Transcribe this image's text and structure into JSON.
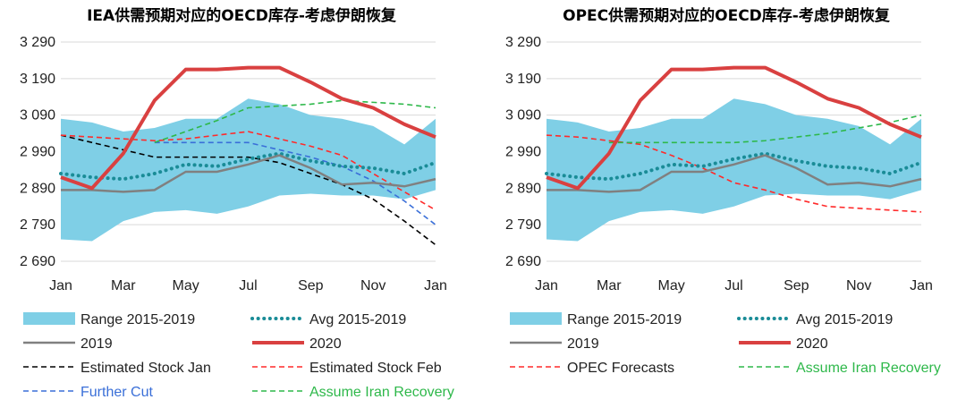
{
  "chart_data": [
    {
      "type": "line",
      "title": "IEA供需预期对应的OECD库存-考虑伊朗恢复",
      "x_ticks": [
        "Jan",
        "Mar",
        "May",
        "Jul",
        "Sep",
        "Nov",
        "Jan"
      ],
      "ylim": [
        2690,
        3290
      ],
      "y_ticks": [
        2690,
        2790,
        2890,
        2990,
        3090,
        3190,
        3290
      ],
      "y_tick_labels": [
        "2 690",
        "2 790",
        "2 890",
        "2 990",
        "3 090",
        "3 190",
        "3 290"
      ],
      "grid": true,
      "legend_placement": "bottom",
      "series": [
        {
          "name": "Range 2015-2019",
          "kind": "band",
          "color": "#7fcfe6",
          "x": [
            0,
            1,
            2,
            3,
            4,
            5,
            6,
            7,
            8,
            9,
            10,
            11,
            12
          ],
          "low": [
            2750,
            2745,
            2800,
            2825,
            2830,
            2820,
            2840,
            2870,
            2875,
            2870,
            2870,
            2860,
            2885
          ],
          "high": [
            3080,
            3070,
            3045,
            3055,
            3080,
            3080,
            3135,
            3120,
            3090,
            3080,
            3060,
            3010,
            3080
          ]
        },
        {
          "name": "Avg 2015-2019",
          "kind": "dotted",
          "color": "#1a8c97",
          "x": [
            0,
            1,
            2,
            3,
            4,
            5,
            6,
            7,
            8,
            9,
            10,
            11,
            12
          ],
          "y": [
            2930,
            2920,
            2915,
            2930,
            2955,
            2950,
            2970,
            2985,
            2965,
            2950,
            2945,
            2930,
            2960
          ]
        },
        {
          "name": "2019",
          "kind": "solid",
          "color": "#808080",
          "x": [
            0,
            1,
            2,
            3,
            4,
            5,
            6,
            7,
            8,
            9,
            10,
            11,
            12
          ],
          "y": [
            2885,
            2885,
            2880,
            2885,
            2935,
            2935,
            2955,
            2980,
            2945,
            2900,
            2905,
            2895,
            2915
          ]
        },
        {
          "name": "2020",
          "kind": "thick",
          "color": "#d94040",
          "x": [
            0,
            1,
            2,
            3,
            4,
            5,
            6,
            7,
            8,
            9,
            10,
            11,
            12
          ],
          "y": [
            2920,
            2890,
            2985,
            3130,
            3215,
            3215,
            3220,
            3220,
            3180,
            3135,
            3110,
            3065,
            3030
          ]
        },
        {
          "name": "Estimated Stock Jan",
          "kind": "dashed",
          "color": "#000000",
          "x": [
            0,
            3,
            4,
            5,
            6,
            7,
            8,
            9,
            10,
            11,
            12
          ],
          "y": [
            3035,
            2975,
            2975,
            2975,
            2975,
            2960,
            2930,
            2900,
            2860,
            2800,
            2735
          ]
        },
        {
          "name": "Estimated Stock Feb",
          "kind": "dashed",
          "color": "#ff2a2a",
          "x": [
            0,
            1,
            2,
            3,
            4,
            5,
            6,
            7,
            8,
            9,
            10,
            11,
            12
          ],
          "y": [
            3035,
            3030,
            3025,
            3020,
            3025,
            3035,
            3045,
            3025,
            3005,
            2980,
            2930,
            2880,
            2830
          ]
        },
        {
          "name": "Further Cut",
          "kind": "dashed",
          "color": "#3a6fd8",
          "x": [
            3,
            4,
            5,
            6,
            7,
            8,
            9,
            10,
            11,
            12
          ],
          "y": [
            3015,
            3015,
            3015,
            3015,
            2995,
            2975,
            2950,
            2910,
            2855,
            2790
          ]
        },
        {
          "name": "Assume Iran Recovery",
          "kind": "dashed",
          "color": "#2eb84a",
          "x": [
            3,
            4,
            5,
            6,
            7,
            8,
            9,
            10,
            11,
            12
          ],
          "y": [
            3015,
            3045,
            3075,
            3110,
            3115,
            3120,
            3130,
            3125,
            3120,
            3110
          ]
        }
      ],
      "legend": [
        {
          "label": "Range 2015-2019",
          "series": 0,
          "label_color": "#222222"
        },
        {
          "label": "Avg 2015-2019",
          "series": 1,
          "label_color": "#222222"
        },
        {
          "label": "2019",
          "series": 2,
          "label_color": "#222222"
        },
        {
          "label": "2020",
          "series": 3,
          "label_color": "#222222"
        },
        {
          "label": "Estimated Stock Jan",
          "series": 4,
          "label_color": "#222222"
        },
        {
          "label": "Estimated Stock Feb",
          "series": 5,
          "label_color": "#222222"
        },
        {
          "label": "Further Cut",
          "series": 6,
          "label_color": "#3a6fd8"
        },
        {
          "label": "Assume Iran Recovery",
          "series": 7,
          "label_color": "#2eb84a"
        }
      ]
    },
    {
      "type": "line",
      "title": "OPEC供需预期对应的OECD库存-考虑伊朗恢复",
      "x_ticks": [
        "Jan",
        "Mar",
        "May",
        "Jul",
        "Sep",
        "Nov",
        "Jan"
      ],
      "ylim": [
        2690,
        3290
      ],
      "y_ticks": [
        2690,
        2790,
        2890,
        2990,
        3090,
        3190,
        3290
      ],
      "y_tick_labels": [
        "2 690",
        "2 790",
        "2 890",
        "2 990",
        "3 090",
        "3 190",
        "3 290"
      ],
      "grid": true,
      "legend_placement": "bottom",
      "series": [
        {
          "name": "Range 2015-2019",
          "kind": "band",
          "color": "#7fcfe6",
          "x": [
            0,
            1,
            2,
            3,
            4,
            5,
            6,
            7,
            8,
            9,
            10,
            11,
            12
          ],
          "low": [
            2750,
            2745,
            2800,
            2825,
            2830,
            2820,
            2840,
            2870,
            2875,
            2870,
            2870,
            2860,
            2885
          ],
          "high": [
            3080,
            3070,
            3045,
            3055,
            3080,
            3080,
            3135,
            3120,
            3090,
            3080,
            3060,
            3010,
            3080
          ]
        },
        {
          "name": "Avg 2015-2019",
          "kind": "dotted",
          "color": "#1a8c97",
          "x": [
            0,
            1,
            2,
            3,
            4,
            5,
            6,
            7,
            8,
            9,
            10,
            11,
            12
          ],
          "y": [
            2930,
            2920,
            2915,
            2930,
            2955,
            2950,
            2970,
            2985,
            2965,
            2950,
            2945,
            2930,
            2960
          ]
        },
        {
          "name": "2019",
          "kind": "solid",
          "color": "#808080",
          "x": [
            0,
            1,
            2,
            3,
            4,
            5,
            6,
            7,
            8,
            9,
            10,
            11,
            12
          ],
          "y": [
            2885,
            2885,
            2880,
            2885,
            2935,
            2935,
            2955,
            2980,
            2945,
            2900,
            2905,
            2895,
            2915
          ]
        },
        {
          "name": "2020",
          "kind": "thick",
          "color": "#d94040",
          "x": [
            0,
            1,
            2,
            3,
            4,
            5,
            6,
            7,
            8,
            9,
            10,
            11,
            12
          ],
          "y": [
            2920,
            2890,
            2985,
            3130,
            3215,
            3215,
            3220,
            3220,
            3180,
            3135,
            3110,
            3065,
            3030
          ]
        },
        {
          "name": "OPEC Forecasts",
          "kind": "dashed",
          "color": "#ff2a2a",
          "x": [
            0,
            1,
            2,
            3,
            4,
            5,
            6,
            7,
            8,
            9,
            10,
            11,
            12
          ],
          "y": [
            3035,
            3030,
            3020,
            3010,
            2980,
            2945,
            2905,
            2885,
            2860,
            2840,
            2835,
            2830,
            2825
          ]
        },
        {
          "name": "Assume Iran Recovery",
          "kind": "dashed",
          "color": "#2eb84a",
          "x": [
            2,
            3,
            4,
            5,
            6,
            7,
            8,
            9,
            10,
            11,
            12
          ],
          "y": [
            3015,
            3015,
            3015,
            3015,
            3015,
            3020,
            3030,
            3040,
            3055,
            3070,
            3090
          ]
        }
      ],
      "legend": [
        {
          "label": "Range 2015-2019",
          "series": 0,
          "label_color": "#222222"
        },
        {
          "label": "Avg 2015-2019",
          "series": 1,
          "label_color": "#222222"
        },
        {
          "label": "2019",
          "series": 2,
          "label_color": "#222222"
        },
        {
          "label": "2020",
          "series": 3,
          "label_color": "#222222"
        },
        {
          "label": "OPEC Forecasts",
          "series": 4,
          "label_color": "#222222"
        },
        {
          "label": "Assume Iran Recovery",
          "series": 5,
          "label_color": "#2eb84a"
        }
      ]
    }
  ]
}
